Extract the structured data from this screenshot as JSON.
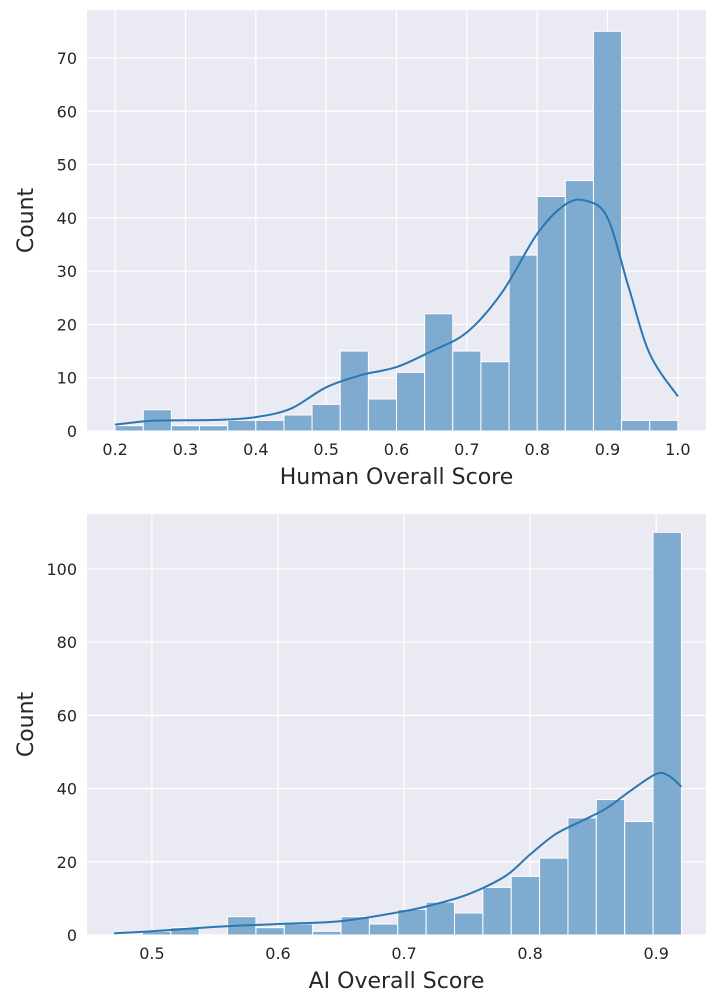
{
  "chart_data": [
    {
      "type": "bar",
      "subtype": "histogram-with-kde",
      "xlabel": "Human Overall Score",
      "ylabel": "Count",
      "xlim": [
        0.16,
        1.04
      ],
      "ylim": [
        0,
        79
      ],
      "xticks": [
        "0.2",
        "0.3",
        "0.4",
        "0.5",
        "0.6",
        "0.7",
        "0.8",
        "0.9",
        "1.0"
      ],
      "yticks": [
        "0",
        "10",
        "20",
        "30",
        "40",
        "50",
        "60",
        "70"
      ],
      "bin_edges": [
        0.2,
        0.24,
        0.28,
        0.32,
        0.36,
        0.4,
        0.44,
        0.48,
        0.52,
        0.56,
        0.6,
        0.64,
        0.68,
        0.72,
        0.76,
        0.8,
        0.84,
        0.88,
        0.92,
        0.96,
        1.0
      ],
      "values": [
        1,
        4,
        1,
        1,
        2,
        2,
        3,
        5,
        15,
        6,
        11,
        22,
        15,
        13,
        33,
        44,
        47,
        75,
        2,
        2
      ],
      "kde": {
        "x": [
          0.2,
          0.25,
          0.3,
          0.35,
          0.4,
          0.45,
          0.5,
          0.55,
          0.6,
          0.65,
          0.7,
          0.75,
          0.8,
          0.84,
          0.87,
          0.9,
          0.93,
          0.96,
          1.0
        ],
        "y": [
          1.2,
          1.9,
          2.0,
          2.1,
          2.6,
          4.2,
          8.2,
          10.5,
          12.0,
          15.0,
          18.5,
          26.0,
          37.0,
          42.5,
          43.2,
          40.0,
          27.0,
          14.5,
          6.5
        ]
      },
      "grid": true,
      "colors": {
        "bar": "#7fabd0",
        "bar_edge": "#ffffff",
        "kde": "#2b77b2",
        "background": "#eaeaf2",
        "grid": "#ffffff"
      }
    },
    {
      "type": "bar",
      "subtype": "histogram-with-kde",
      "xlabel": "AI Overall Score",
      "ylabel": "Count",
      "xlim": [
        0.4485,
        0.9395
      ],
      "ylim": [
        0,
        115
      ],
      "xticks": [
        "0.5",
        "0.6",
        "0.7",
        "0.8",
        "0.9"
      ],
      "yticks": [
        "0",
        "20",
        "40",
        "60",
        "80",
        "100"
      ],
      "bin_edges": [
        0.47,
        0.4925,
        0.515,
        0.5375,
        0.56,
        0.5825,
        0.605,
        0.6275,
        0.65,
        0.6725,
        0.695,
        0.7175,
        0.74,
        0.7625,
        0.785,
        0.8075,
        0.83,
        0.8525,
        0.875,
        0.8975,
        0.92
      ],
      "values": [
        0,
        1,
        2,
        0,
        5,
        2,
        3,
        1,
        5,
        3,
        7,
        9,
        6,
        13,
        16,
        21,
        32,
        37,
        31,
        110
      ],
      "kde": {
        "x": [
          0.47,
          0.5,
          0.55,
          0.6,
          0.65,
          0.7,
          0.72,
          0.75,
          0.78,
          0.8,
          0.82,
          0.84,
          0.86,
          0.88,
          0.9,
          0.91,
          0.92
        ],
        "y": [
          0.5,
          1.0,
          2.2,
          3.0,
          3.8,
          6.5,
          8.0,
          11.0,
          16.0,
          22.0,
          27.5,
          31.0,
          34.5,
          39.5,
          44.0,
          43.5,
          40.5
        ]
      },
      "grid": true,
      "colors": {
        "bar": "#7fabd0",
        "bar_edge": "#ffffff",
        "kde": "#2b77b2",
        "background": "#eaeaf2",
        "grid": "#ffffff"
      }
    }
  ]
}
